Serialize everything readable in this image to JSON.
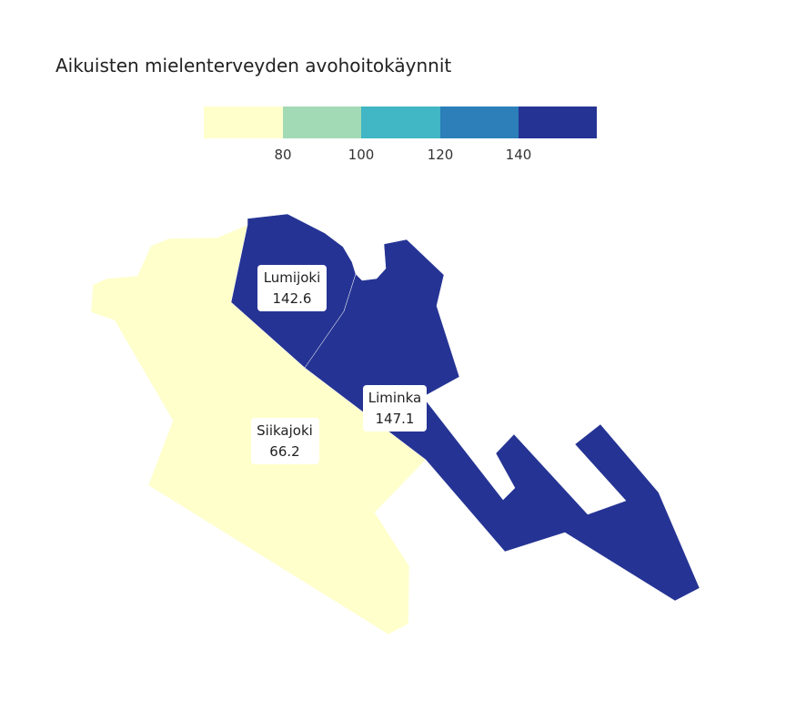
{
  "title": "Aikuisten mielenterveyden avohoitokäynnit",
  "legend": {
    "bins": [
      {
        "color": "#ffffcc"
      },
      {
        "color": "#a1dab4"
      },
      {
        "color": "#41b6c4"
      },
      {
        "color": "#2c7fb8"
      },
      {
        "color": "#253494"
      }
    ],
    "ticks": [
      "80",
      "100",
      "120",
      "140"
    ]
  },
  "regions": [
    {
      "id": "siikajoki",
      "name": "Siikajoki",
      "value": "66.2",
      "color": "#ffffcc"
    },
    {
      "id": "lumijoki",
      "name": "Lumijoki",
      "value": "142.6",
      "color": "#253494"
    },
    {
      "id": "liminka",
      "name": "Liminka",
      "value": "147.1",
      "color": "#253494"
    }
  ]
}
